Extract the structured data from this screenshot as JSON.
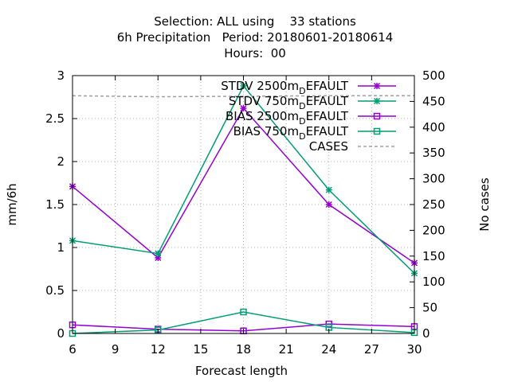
{
  "chart_data": {
    "type": "line",
    "title_lines": [
      "Selection: ALL using    33 stations",
      "6h Precipitation   Period: 20180601-20180614",
      "Hours:  00"
    ],
    "xlabel": "Forecast length",
    "ylabel": "mm/6h",
    "y2label": "No cases",
    "xlim": [
      6,
      30
    ],
    "ylim": [
      0,
      3
    ],
    "y2lim": [
      0,
      500
    ],
    "xticks": [
      "6",
      "9",
      "12",
      "15",
      "18",
      "21",
      "24",
      "27",
      "30"
    ],
    "yticks": [
      "0",
      "0.5",
      "1",
      "1.5",
      "2",
      "2.5",
      "3"
    ],
    "y2ticks": [
      "0",
      "50",
      "100",
      "150",
      "200",
      "250",
      "300",
      "350",
      "400",
      "450",
      "500"
    ],
    "grid": true,
    "legend_position": "top-right",
    "x": [
      6,
      12,
      18,
      24,
      30
    ],
    "series": [
      {
        "name": "STDV 2500m",
        "name_sub": "D",
        "name_tail": "EFAULT",
        "values": [
          1.71,
          0.88,
          2.62,
          1.5,
          0.82
        ],
        "color": "#9400d3",
        "marker": "star",
        "axis": "y1"
      },
      {
        "name": "STDV 750m",
        "name_sub": "D",
        "name_tail": "EFAULT",
        "values": [
          1.08,
          0.93,
          2.88,
          1.67,
          0.7
        ],
        "color": "#009e73",
        "marker": "star",
        "axis": "y1"
      },
      {
        "name": "BIAS 2500m",
        "name_sub": "D",
        "name_tail": "EFAULT",
        "values": [
          0.1,
          0.05,
          0.03,
          0.11,
          0.08
        ],
        "color": "#9400d3",
        "marker": "square",
        "axis": "y1"
      },
      {
        "name": "BIAS 750m",
        "name_sub": "D",
        "name_tail": "EFAULT",
        "values": [
          0.0,
          0.04,
          0.25,
          0.07,
          0.01
        ],
        "color": "#009e73",
        "marker": "square",
        "axis": "y1"
      },
      {
        "name": "CASES",
        "name_sub": "",
        "name_tail": "",
        "values": [
          461,
          459,
          460,
          461,
          461
        ],
        "color": "#a0a0a0",
        "marker": "none",
        "dashed": true,
        "axis": "y2"
      }
    ]
  }
}
